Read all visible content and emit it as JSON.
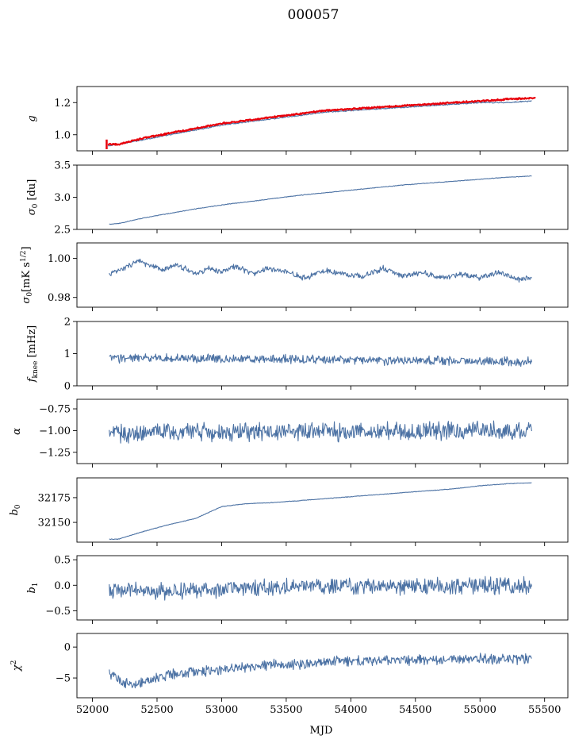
{
  "figure": {
    "title": "000057",
    "xlabel": "MJD"
  },
  "colors": {
    "series": "#4c72a4",
    "fit": "#e8000b",
    "axes": "#000000"
  },
  "chart_data": [
    {
      "type": "line",
      "ylabel": "g",
      "xlim": [
        51880,
        55680
      ],
      "ylim": [
        0.9,
        1.3
      ],
      "yticks": [
        1.0,
        1.2
      ],
      "ytick_labels": [
        "1.0",
        "1.2"
      ],
      "series": [
        {
          "x": [
            52120,
            52200,
            52400,
            52600,
            52800,
            53000,
            53200,
            53400,
            53600,
            53800,
            54000,
            54200,
            54400,
            54600,
            54800,
            55000,
            55200,
            55400
          ],
          "values": [
            0.93,
            0.94,
            0.97,
            1.0,
            1.03,
            1.06,
            1.08,
            1.1,
            1.12,
            1.14,
            1.15,
            1.16,
            1.17,
            1.18,
            1.19,
            1.2,
            1.2,
            1.21
          ],
          "noise": 0.003
        },
        {
          "x": [
            52120,
            52200,
            52400,
            52600,
            52800,
            53000,
            53200,
            53400,
            53600,
            53800,
            54000,
            54200,
            54400,
            54600,
            54800,
            55000,
            55200,
            55430
          ],
          "values": [
            0.94,
            0.94,
            0.98,
            1.01,
            1.04,
            1.07,
            1.09,
            1.11,
            1.13,
            1.15,
            1.16,
            1.17,
            1.18,
            1.19,
            1.2,
            1.21,
            1.22,
            1.23
          ],
          "noise": 0.004,
          "color": "fit",
          "width": 2.2,
          "errorbar": {
            "x": 52110,
            "lo": 0.91,
            "hi": 0.97
          }
        }
      ]
    },
    {
      "type": "line",
      "ylabel": "σ0 [du]",
      "xlim": [
        51880,
        55680
      ],
      "ylim": [
        2.5,
        3.5
      ],
      "yticks": [
        2.5,
        3.0,
        3.5
      ],
      "ytick_labels": [
        "2.5",
        "3.0",
        "3.5"
      ],
      "series": [
        {
          "x": [
            52130,
            52200,
            52400,
            52600,
            52800,
            53000,
            53200,
            53400,
            53600,
            53800,
            54000,
            54200,
            54400,
            54600,
            54800,
            55000,
            55200,
            55400
          ],
          "values": [
            2.58,
            2.59,
            2.68,
            2.75,
            2.82,
            2.88,
            2.93,
            2.98,
            3.03,
            3.07,
            3.11,
            3.15,
            3.19,
            3.22,
            3.25,
            3.28,
            3.31,
            3.33
          ],
          "noise": 0.004
        }
      ]
    },
    {
      "type": "line",
      "ylabel": "σ0[mK s^1/2]",
      "xlim": [
        51880,
        55680
      ],
      "ylim": [
        0.975,
        1.008
      ],
      "yticks": [
        0.98,
        1.0
      ],
      "ytick_labels": [
        "0.98",
        "1.00"
      ],
      "series": [
        {
          "x": [
            52130,
            52250,
            52350,
            52450,
            52550,
            52650,
            52800,
            52900,
            53000,
            53100,
            53250,
            53350,
            53500,
            53650,
            53800,
            53950,
            54100,
            54250,
            54400,
            54550,
            54700,
            54850,
            55000,
            55150,
            55300,
            55400
          ],
          "values": [
            0.992,
            0.995,
            0.999,
            0.996,
            0.994,
            0.997,
            0.992,
            0.995,
            0.993,
            0.996,
            0.992,
            0.995,
            0.993,
            0.99,
            0.994,
            0.992,
            0.991,
            0.995,
            0.991,
            0.993,
            0.99,
            0.992,
            0.99,
            0.993,
            0.989,
            0.99
          ],
          "noise": 0.0012
        }
      ]
    },
    {
      "type": "line",
      "ylabel": "f_knee [mHz]",
      "xlim": [
        51880,
        55680
      ],
      "ylim": [
        0,
        2
      ],
      "yticks": [
        0,
        1,
        2
      ],
      "ytick_labels": [
        "0",
        "1",
        "2"
      ],
      "series": [
        {
          "x": [
            52130,
            52500,
            53000,
            53500,
            54000,
            54500,
            55000,
            55400
          ],
          "values": [
            0.86,
            0.86,
            0.84,
            0.82,
            0.8,
            0.79,
            0.76,
            0.74
          ],
          "noise": 0.12
        }
      ]
    },
    {
      "type": "line",
      "ylabel": "α",
      "xlim": [
        51880,
        55680
      ],
      "ylim": [
        -1.38,
        -0.64
      ],
      "yticks": [
        -1.25,
        -1.0,
        -0.75
      ],
      "ytick_labels": [
        "−1.25",
        "−1.00",
        "−0.75"
      ],
      "series": [
        {
          "x": [
            52130,
            52800,
            53500,
            54200,
            54900,
            55400
          ],
          "values": [
            -1.03,
            -1.02,
            -1.01,
            -1.01,
            -1.0,
            -1.0
          ],
          "noise": 0.09
        }
      ]
    },
    {
      "type": "line",
      "ylabel": "b0",
      "xlim": [
        51880,
        55680
      ],
      "ylim": [
        32130,
        32195
      ],
      "yticks": [
        32150,
        32175
      ],
      "ytick_labels": [
        "32150",
        "32175"
      ],
      "series": [
        {
          "x": [
            52130,
            52200,
            52400,
            52600,
            52800,
            52900,
            53000,
            53200,
            53400,
            53600,
            53800,
            54000,
            54200,
            54400,
            54600,
            54800,
            55000,
            55200,
            55400
          ],
          "values": [
            32133,
            32133,
            32141,
            32148,
            32154,
            32160,
            32166,
            32169,
            32170,
            32172,
            32174,
            32176,
            32178,
            32180,
            32182,
            32184,
            32187,
            32189,
            32190
          ],
          "noise": 0.25
        }
      ]
    },
    {
      "type": "line",
      "ylabel": "b1",
      "xlim": [
        51880,
        55680
      ],
      "ylim": [
        -0.68,
        0.58
      ],
      "yticks": [
        -0.5,
        0.0,
        0.5
      ],
      "ytick_labels": [
        "−0.5",
        "0.0",
        "0.5"
      ],
      "series": [
        {
          "x": [
            52130,
            52500,
            53000,
            53500,
            54000,
            54500,
            55000,
            55400
          ],
          "values": [
            -0.1,
            -0.12,
            -0.08,
            -0.02,
            -0.02,
            -0.03,
            0.0,
            -0.01
          ],
          "noise": 0.14
        }
      ]
    },
    {
      "type": "line",
      "ylabel": "χ²",
      "xlim": [
        51880,
        55680
      ],
      "ylim": [
        -8.2,
        2.2
      ],
      "yticks": [
        -5,
        0
      ],
      "ytick_labels": [
        "−5",
        "0"
      ],
      "xticks": [
        52000,
        52500,
        53000,
        53500,
        54000,
        54500,
        55000,
        55500
      ],
      "xtick_labels": [
        "52000",
        "52500",
        "53000",
        "53500",
        "54000",
        "54500",
        "55000",
        "55500"
      ],
      "series": [
        {
          "x": [
            52130,
            52200,
            52300,
            52400,
            52600,
            52800,
            53000,
            53200,
            53400,
            53600,
            53800,
            54000,
            54200,
            54400,
            54600,
            54800,
            55000,
            55200,
            55400
          ],
          "values": [
            -4.2,
            -5.2,
            -6.2,
            -5.5,
            -4.5,
            -4.0,
            -3.6,
            -3.2,
            -2.8,
            -2.7,
            -2.3,
            -2.3,
            -2.0,
            -2.2,
            -2.0,
            -1.8,
            -1.9,
            -2.0,
            -1.8
          ],
          "noise": 0.7
        }
      ]
    }
  ]
}
